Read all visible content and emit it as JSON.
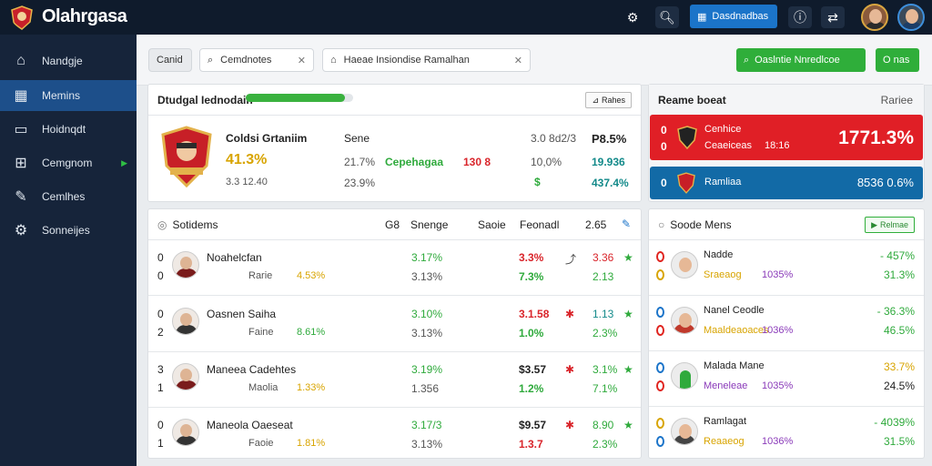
{
  "app": {
    "brand": "Olahrgasa"
  },
  "topbar": {
    "primary_label": "Dasdnadbas"
  },
  "sidebar": {
    "items": [
      {
        "label": "Nandgje",
        "icon": "home-icon"
      },
      {
        "label": "Memins",
        "icon": "grid-icon",
        "active": true
      },
      {
        "label": "Hoidnqdt",
        "icon": "monitor-icon"
      },
      {
        "label": "Cemgnom",
        "icon": "bag-icon",
        "arrow": true
      },
      {
        "label": "Cemlhes",
        "icon": "wrench-icon"
      },
      {
        "label": "Sonneijes",
        "icon": "gear-icon"
      }
    ]
  },
  "filters": {
    "chip1": "Canid",
    "chip2": "Cemdnotes",
    "chip3": "Haeae Insiondise Ramalhan",
    "btn_green": "Oaslntie Nnredlcoe",
    "btn_small": "O nas"
  },
  "summary": {
    "title": "Dtudgal Iednodain",
    "btn": "Rahes",
    "team_name": "Coldsi Grtaniim",
    "big_value": "41.3%",
    "sub_value": "3.3 12.40",
    "col1_head": "Sene",
    "col1_row1": "21.7%",
    "col1_row2": "23.9%",
    "center_label": "Cepehagaa",
    "center_value": "130 8",
    "progress_pct": 0.92,
    "col3_head": "3.0 8d2/3",
    "col3_row1": "10,0%",
    "col3_row2": "$",
    "col4_head": "P8.5%",
    "col4_row1": "19.936",
    "col4_row2": "437.4%"
  },
  "scorebox": {
    "title": "Reame boeat",
    "right_label": "Rariee",
    "red": {
      "num": "0",
      "num2": "0",
      "name1": "Cenhice",
      "name2": "Ceaeiceas",
      "mid": "18:16",
      "value": "1771.3%"
    },
    "blue": {
      "num": "0",
      "name": "Ramliaa",
      "value": "8536 0.6%"
    }
  },
  "players": {
    "title": "Sotidems",
    "head_a": "G8",
    "head_b": "Snenge",
    "head_c": "Saoie",
    "head_d": "Feonadl",
    "head_e": "2.65",
    "rows": [
      {
        "n1": "0",
        "n2": "0",
        "name": "Noahelcfan",
        "sub": "Rarie",
        "pct": "4.53%",
        "g1": "3.17%",
        "g2": "3.13%",
        "r1": "3.3%",
        "r2": "7.3%",
        "t1": "3.36",
        "t2": "2.13"
      },
      {
        "n1": "0",
        "n2": "2",
        "name": "Oasnen Saiha",
        "sub": "Faine",
        "pct": "8.61%",
        "g1": "3.10%",
        "g2": "3.13%",
        "r1": "3.1.58",
        "r2": "1.0%",
        "t1": "1.13",
        "t2": "2.3%"
      },
      {
        "n1": "3",
        "n2": "1",
        "name": "Maneea Cadehtes",
        "sub": "Maolia",
        "pct": "1.33%",
        "g1": "3.19%",
        "g2": "1.356",
        "r1": "$3.57",
        "r2": "1.2%",
        "t1": "3.1%",
        "t2": "7.1%"
      },
      {
        "n1": "0",
        "n2": "1",
        "name": "Maneola Oaeseat",
        "sub": "Faoie",
        "pct": "1.81%",
        "g1": "3.17/3",
        "g2": "3.13%",
        "r1": "$9.57",
        "r2": "1.3.7",
        "t1": "8.90",
        "t2": "2.3%"
      }
    ]
  },
  "ranking": {
    "title": "Soode Mens",
    "btn": "Relmae",
    "rows": [
      {
        "name": "Nadde",
        "sub": "Sraeaog",
        "pct": "1035%",
        "v1": "- 457%",
        "v2": "31.3%"
      },
      {
        "name": "Nanel Ceodle",
        "sub": "Maaldeaoaces",
        "pct": "1036%",
        "v1": "- 36.3%",
        "v2": "46.5%"
      },
      {
        "name": "Malada Mane",
        "sub": "Meneleae",
        "pct": "1035%",
        "v1": "33.7%",
        "v2": "24.5%"
      },
      {
        "name": "Ramlagat",
        "sub": "Reaaeog",
        "pct": "1036%",
        "v1": "- 4039%",
        "v2": "31.5%"
      }
    ]
  }
}
